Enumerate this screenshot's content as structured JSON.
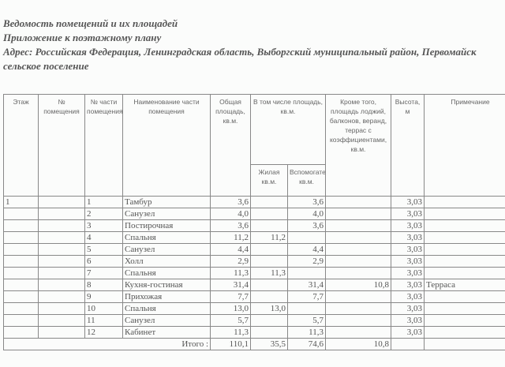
{
  "header": {
    "title": "Ведомость помещений  и их площадей",
    "subtitle": "Приложение к поэтажному плану",
    "address": "Адрес: Российская Федерация, Ленинградская область, Выборгский муниципальный район, Первомайск",
    "address2": "сельское поселение"
  },
  "columns": {
    "floor": "Этаж",
    "room_no": "№ помещения",
    "part_no": "№ части помещения",
    "name": "Наименование части помещения",
    "total": "Общая площадь, кв.м.",
    "incl": "В том числе площадь, кв.м.",
    "living": "Жилая кв.м.",
    "aux": "Вспомогательная, кв.м.",
    "extra": "Кроме того, площадь лоджий, балконов, веранд, террас с коэффициентами, кв.м.",
    "height": "Высота, м",
    "note": "Примечание"
  },
  "rows": [
    {
      "floor": "1",
      "part": "1",
      "name": "Тамбур",
      "total": "3,6",
      "living": "",
      "aux": "3,6",
      "extra": "",
      "height": "3,03",
      "note": ""
    },
    {
      "floor": "",
      "part": "2",
      "name": "Санузел",
      "total": "4,0",
      "living": "",
      "aux": "4,0",
      "extra": "",
      "height": "3,03",
      "note": ""
    },
    {
      "floor": "",
      "part": "3",
      "name": "Постирочная",
      "total": "3,6",
      "living": "",
      "aux": "3,6",
      "extra": "",
      "height": "3,03",
      "note": ""
    },
    {
      "floor": "",
      "part": "4",
      "name": "Спальня",
      "total": "11,2",
      "living": "11,2",
      "aux": "",
      "extra": "",
      "height": "3,03",
      "note": ""
    },
    {
      "floor": "",
      "part": "5",
      "name": "Санузел",
      "total": "4,4",
      "living": "",
      "aux": "4,4",
      "extra": "",
      "height": "3,03",
      "note": ""
    },
    {
      "floor": "",
      "part": "6",
      "name": "Холл",
      "total": "2,9",
      "living": "",
      "aux": "2,9",
      "extra": "",
      "height": "3,03",
      "note": ""
    },
    {
      "floor": "",
      "part": "7",
      "name": "Спальня",
      "total": "11,3",
      "living": "11,3",
      "aux": "",
      "extra": "",
      "height": "3,03",
      "note": ""
    },
    {
      "floor": "",
      "part": "8",
      "name": "Кухня-гостиная",
      "total": "31,4",
      "living": "",
      "aux": "31,4",
      "extra": "10,8",
      "height": "3,03",
      "note": "Терраса"
    },
    {
      "floor": "",
      "part": "9",
      "name": "Прихожая",
      "total": "7,7",
      "living": "",
      "aux": "7,7",
      "extra": "",
      "height": "3,03",
      "note": ""
    },
    {
      "floor": "",
      "part": "10",
      "name": "Спальня",
      "total": "13,0",
      "living": "13,0",
      "aux": "",
      "extra": "",
      "height": "3,03",
      "note": ""
    },
    {
      "floor": "",
      "part": "11",
      "name": "Санузел",
      "total": "5,7",
      "living": "",
      "aux": "5,7",
      "extra": "",
      "height": "3,03",
      "note": ""
    },
    {
      "floor": "",
      "part": "12",
      "name": "Кабинет",
      "total": "11,3",
      "living": "",
      "aux": "11,3",
      "extra": "",
      "height": "3,03",
      "note": ""
    }
  ],
  "total": {
    "label": "Итого :",
    "total": "110,1",
    "living": "35,5",
    "aux": "74,6",
    "extra": "10,8"
  }
}
